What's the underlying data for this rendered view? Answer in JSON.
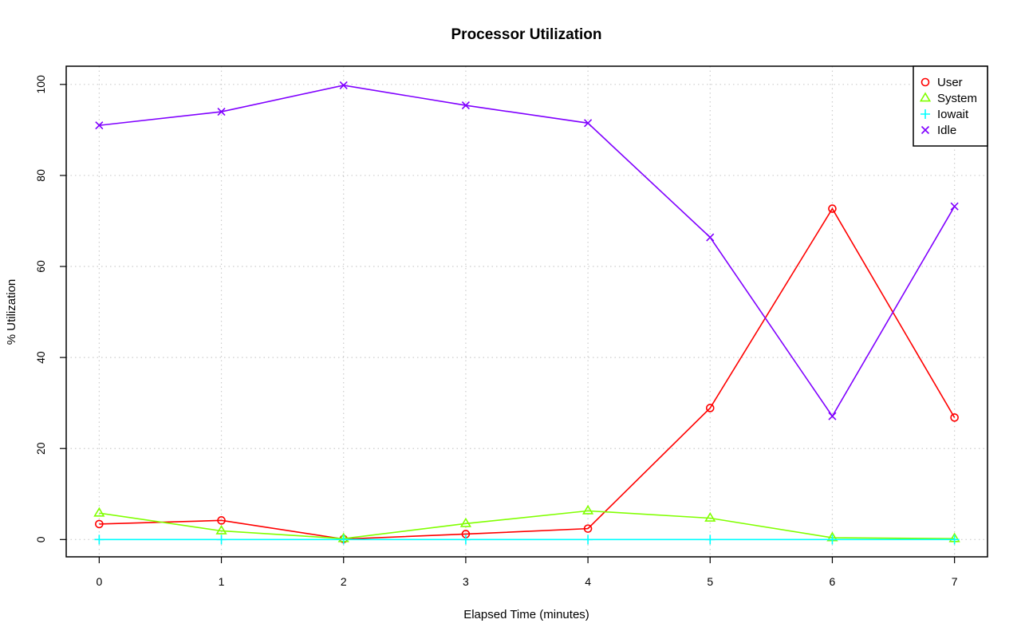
{
  "chart_data": {
    "type": "line",
    "title": "Processor Utilization",
    "xlabel": "Elapsed Time (minutes)",
    "ylabel": "% Utilization",
    "x": [
      0,
      1,
      2,
      3,
      4,
      5,
      6,
      7
    ],
    "xlim": [
      -0.27,
      7.27
    ],
    "ylim": [
      -3.8,
      104
    ],
    "xticks": [
      0,
      1,
      2,
      3,
      4,
      5,
      6,
      7
    ],
    "yticks": [
      0,
      20,
      40,
      60,
      80,
      100
    ],
    "grid": true,
    "legend_position": "top-right",
    "series": [
      {
        "name": "User",
        "color": "#ff0000",
        "marker": "circle",
        "values": [
          3.4,
          4.2,
          0.1,
          1.2,
          2.4,
          28.9,
          72.7,
          26.8
        ]
      },
      {
        "name": "System",
        "color": "#80ff00",
        "marker": "triangle",
        "values": [
          5.8,
          1.9,
          0.2,
          3.5,
          6.3,
          4.7,
          0.4,
          0.2
        ]
      },
      {
        "name": "Iowait",
        "color": "#00ffff",
        "marker": "plus",
        "values": [
          0,
          0,
          0,
          0,
          0,
          0,
          0,
          0
        ]
      },
      {
        "name": "Idle",
        "color": "#8000ff",
        "marker": "cross",
        "values": [
          91.0,
          94.0,
          99.8,
          95.4,
          91.5,
          66.4,
          27.1,
          73.2
        ]
      }
    ]
  }
}
